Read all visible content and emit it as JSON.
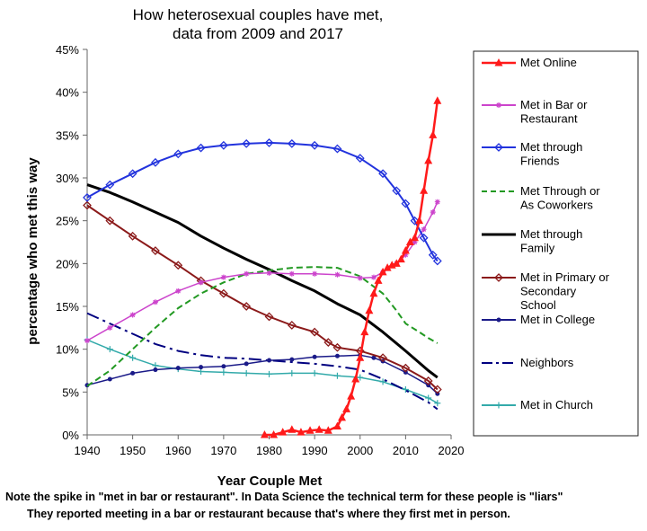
{
  "chart_data": {
    "type": "line",
    "title": [
      "How heterosexual couples have met,",
      "data from 2009 and 2017"
    ],
    "xlabel": "Year Couple Met",
    "ylabel": "percentage who met this way",
    "xlim": [
      1940,
      2020
    ],
    "ylim": [
      0,
      45
    ],
    "x_ticks": [
      "1940",
      "1950",
      "1960",
      "1970",
      "1980",
      "1990",
      "2000",
      "2010",
      "2020"
    ],
    "y_ticks": [
      "0%",
      "5%",
      "10%",
      "15%",
      "20%",
      "25%",
      "30%",
      "35%",
      "40%",
      "45%"
    ],
    "grid": false,
    "legend_position": "right",
    "series": [
      {
        "name": "Met Online",
        "color": "#ff1a1a",
        "style": "solid",
        "width": 2.5,
        "marker": "triangle",
        "points": [
          [
            1979,
            0
          ],
          [
            1981,
            0
          ],
          [
            1983,
            0.3
          ],
          [
            1985,
            0.6
          ],
          [
            1987,
            0.3
          ],
          [
            1989,
            0.5
          ],
          [
            1991,
            0.6
          ],
          [
            1993,
            0.5
          ],
          [
            1995,
            1.0
          ],
          [
            1996,
            2.0
          ],
          [
            1997,
            3.0
          ],
          [
            1998,
            4.5
          ],
          [
            1999,
            6.5
          ],
          [
            2000,
            9.0
          ],
          [
            2001,
            12.0
          ],
          [
            2002,
            14.5
          ],
          [
            2003,
            16.5
          ],
          [
            2004,
            18.0
          ],
          [
            2005,
            19.0
          ],
          [
            2006,
            19.5
          ],
          [
            2007,
            19.8
          ],
          [
            2008,
            20.0
          ],
          [
            2009,
            20.5
          ],
          [
            2010,
            21.5
          ],
          [
            2011,
            22.5
          ],
          [
            2012,
            23.0
          ],
          [
            2013,
            25.0
          ],
          [
            2014,
            28.5
          ],
          [
            2015,
            32.0
          ],
          [
            2016,
            35.0
          ],
          [
            2017,
            39.0
          ]
        ]
      },
      {
        "name": "Met in Bar or Restaurant",
        "color": "#cc44cc",
        "style": "solid",
        "width": 1.5,
        "marker": "star",
        "points": [
          [
            1940,
            11.0
          ],
          [
            1945,
            12.5
          ],
          [
            1950,
            14.0
          ],
          [
            1955,
            15.5
          ],
          [
            1960,
            16.8
          ],
          [
            1965,
            17.8
          ],
          [
            1970,
            18.4
          ],
          [
            1975,
            18.8
          ],
          [
            1980,
            18.9
          ],
          [
            1985,
            18.8
          ],
          [
            1990,
            18.8
          ],
          [
            1995,
            18.7
          ],
          [
            2000,
            18.3
          ],
          [
            2003,
            18.4
          ],
          [
            2005,
            19.0
          ],
          [
            2008,
            20.0
          ],
          [
            2010,
            21.0
          ],
          [
            2012,
            22.5
          ],
          [
            2014,
            24.0
          ],
          [
            2016,
            26.0
          ],
          [
            2017,
            27.2
          ]
        ]
      },
      {
        "name": "Met through Friends",
        "color": "#2233dd",
        "style": "solid",
        "width": 2,
        "marker": "diamond",
        "points": [
          [
            1940,
            27.7
          ],
          [
            1945,
            29.2
          ],
          [
            1950,
            30.5
          ],
          [
            1955,
            31.8
          ],
          [
            1960,
            32.8
          ],
          [
            1965,
            33.5
          ],
          [
            1970,
            33.8
          ],
          [
            1975,
            34.0
          ],
          [
            1980,
            34.1
          ],
          [
            1985,
            34.0
          ],
          [
            1990,
            33.8
          ],
          [
            1995,
            33.4
          ],
          [
            2000,
            32.3
          ],
          [
            2005,
            30.5
          ],
          [
            2008,
            28.5
          ],
          [
            2010,
            27.0
          ],
          [
            2012,
            25.0
          ],
          [
            2014,
            23.0
          ],
          [
            2016,
            21.0
          ],
          [
            2017,
            20.3
          ]
        ]
      },
      {
        "name": "Met Through or As Coworkers",
        "color": "#229922",
        "style": "dashed",
        "width": 2,
        "marker": "none",
        "points": [
          [
            1940,
            5.7
          ],
          [
            1945,
            7.5
          ],
          [
            1950,
            10.0
          ],
          [
            1955,
            12.5
          ],
          [
            1960,
            14.8
          ],
          [
            1965,
            16.5
          ],
          [
            1970,
            17.8
          ],
          [
            1975,
            18.8
          ],
          [
            1980,
            19.2
          ],
          [
            1985,
            19.5
          ],
          [
            1990,
            19.6
          ],
          [
            1995,
            19.5
          ],
          [
            2000,
            18.5
          ],
          [
            2005,
            16.5
          ],
          [
            2008,
            14.5
          ],
          [
            2010,
            13.0
          ],
          [
            2013,
            12.0
          ],
          [
            2015,
            11.3
          ],
          [
            2017,
            10.7
          ]
        ]
      },
      {
        "name": "Met through Family",
        "color": "#000000",
        "style": "solid",
        "width": 3,
        "marker": "none",
        "points": [
          [
            1940,
            29.2
          ],
          [
            1945,
            28.3
          ],
          [
            1950,
            27.2
          ],
          [
            1955,
            26.0
          ],
          [
            1960,
            24.8
          ],
          [
            1965,
            23.2
          ],
          [
            1970,
            21.8
          ],
          [
            1975,
            20.5
          ],
          [
            1980,
            19.3
          ],
          [
            1985,
            18.0
          ],
          [
            1990,
            16.8
          ],
          [
            1995,
            15.3
          ],
          [
            2000,
            14.0
          ],
          [
            2005,
            12.0
          ],
          [
            2010,
            9.8
          ],
          [
            2015,
            7.5
          ],
          [
            2017,
            6.7
          ]
        ]
      },
      {
        "name": "Met in Primary or Secondary School",
        "color": "#8b1a1a",
        "style": "solid",
        "width": 2,
        "marker": "diamond",
        "points": [
          [
            1940,
            26.8
          ],
          [
            1945,
            25.0
          ],
          [
            1950,
            23.2
          ],
          [
            1955,
            21.5
          ],
          [
            1960,
            19.8
          ],
          [
            1965,
            18.0
          ],
          [
            1970,
            16.5
          ],
          [
            1975,
            15.0
          ],
          [
            1980,
            13.8
          ],
          [
            1985,
            12.8
          ],
          [
            1990,
            12.0
          ],
          [
            1993,
            10.8
          ],
          [
            1995,
            10.2
          ],
          [
            2000,
            9.8
          ],
          [
            2005,
            9.0
          ],
          [
            2010,
            7.8
          ],
          [
            2015,
            6.3
          ],
          [
            2017,
            5.3
          ]
        ]
      },
      {
        "name": "Met in College",
        "color": "#1a1a88",
        "style": "solid",
        "width": 1.5,
        "marker": "dot",
        "points": [
          [
            1940,
            5.8
          ],
          [
            1945,
            6.5
          ],
          [
            1950,
            7.2
          ],
          [
            1955,
            7.6
          ],
          [
            1960,
            7.8
          ],
          [
            1965,
            7.9
          ],
          [
            1970,
            8.0
          ],
          [
            1975,
            8.3
          ],
          [
            1980,
            8.7
          ],
          [
            1985,
            8.8
          ],
          [
            1990,
            9.1
          ],
          [
            1995,
            9.2
          ],
          [
            2000,
            9.3
          ],
          [
            2003,
            9.0
          ],
          [
            2005,
            8.6
          ],
          [
            2010,
            7.3
          ],
          [
            2015,
            5.8
          ],
          [
            2017,
            4.8
          ]
        ]
      },
      {
        "name": "Neighbors",
        "color": "#000080",
        "style": "dashdot",
        "width": 2,
        "marker": "none",
        "points": [
          [
            1940,
            14.2
          ],
          [
            1945,
            13.0
          ],
          [
            1950,
            11.8
          ],
          [
            1955,
            10.6
          ],
          [
            1960,
            9.8
          ],
          [
            1965,
            9.3
          ],
          [
            1970,
            9.0
          ],
          [
            1975,
            8.9
          ],
          [
            1980,
            8.7
          ],
          [
            1985,
            8.5
          ],
          [
            1990,
            8.3
          ],
          [
            1995,
            8.0
          ],
          [
            2000,
            7.6
          ],
          [
            2005,
            6.5
          ],
          [
            2010,
            5.2
          ],
          [
            2015,
            3.8
          ],
          [
            2017,
            3.0
          ]
        ]
      },
      {
        "name": "Met in Church",
        "color": "#33aaaa",
        "style": "solid",
        "width": 1.5,
        "marker": "plus",
        "points": [
          [
            1940,
            11.1
          ],
          [
            1945,
            10.0
          ],
          [
            1950,
            9.0
          ],
          [
            1955,
            8.1
          ],
          [
            1960,
            7.7
          ],
          [
            1965,
            7.4
          ],
          [
            1970,
            7.3
          ],
          [
            1975,
            7.2
          ],
          [
            1980,
            7.1
          ],
          [
            1985,
            7.2
          ],
          [
            1990,
            7.2
          ],
          [
            1995,
            6.9
          ],
          [
            2000,
            6.7
          ],
          [
            2005,
            6.2
          ],
          [
            2010,
            5.3
          ],
          [
            2015,
            4.3
          ],
          [
            2017,
            3.7
          ]
        ]
      }
    ],
    "legend_labels": [
      [
        "Met Online"
      ],
      [
        "Met in Bar or",
        "Restaurant"
      ],
      [
        "Met through",
        "Friends"
      ],
      [
        "Met Through or",
        "As Coworkers"
      ],
      [
        "Met through",
        "Family"
      ],
      [
        "Met in Primary or",
        "Secondary",
        "School"
      ],
      [
        "Met in College"
      ],
      [
        "Neighbors"
      ],
      [
        "Met in Church"
      ]
    ]
  },
  "notes": {
    "line1": "Note the spike in \"met in bar or restaurant\".    In Data Science the technical term for these people is \"liars\"",
    "line2": "They reported meeting in a bar or restaurant because that's where they first met in person."
  }
}
